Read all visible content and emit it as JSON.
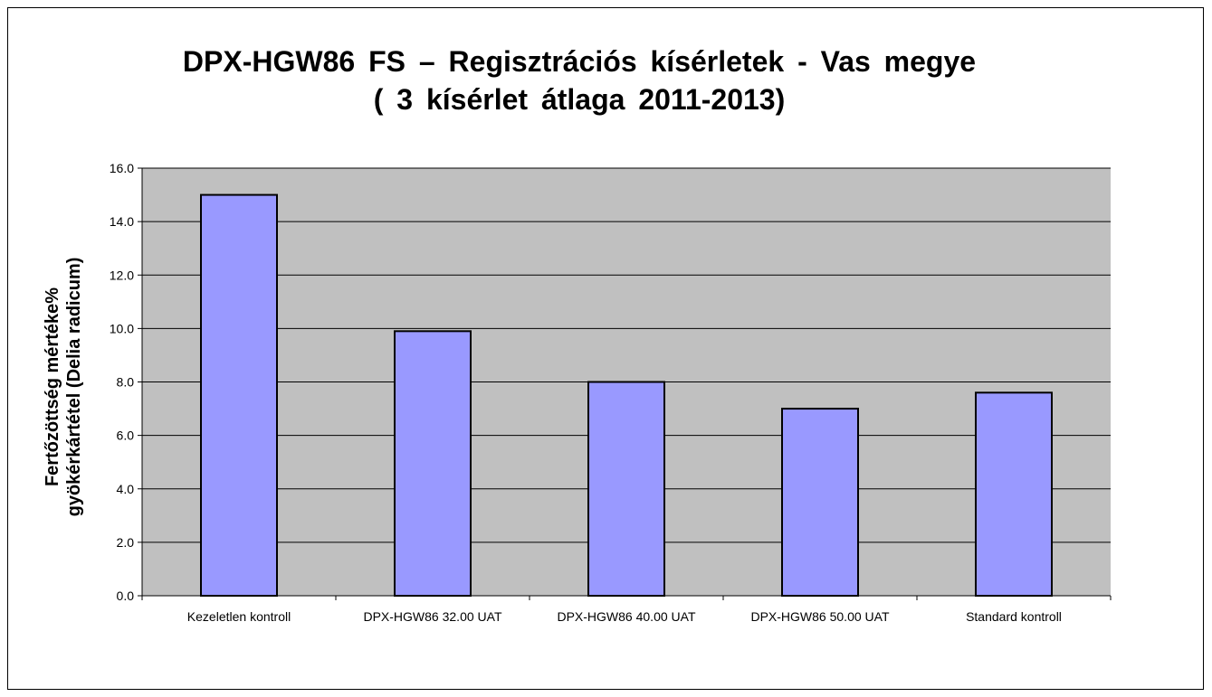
{
  "chart_data": {
    "type": "bar",
    "title_line1": "DPX-HGW86 FS – Regisztrációs kísérletek - Vas megye",
    "title_line2": "( 3 kísérlet átlaga  2011-2013)",
    "ylabel_line1": "Fertőzöttség mértéke%",
    "ylabel_line2": "gyökérkártétel (Delia radicum)",
    "xlabel": "",
    "categories": [
      "Kezeletlen kontroll",
      "DPX-HGW86 32.00 UAT",
      "DPX-HGW86 40.00 UAT",
      "DPX-HGW86 50.00 UAT",
      "Standard kontroll"
    ],
    "values": [
      15.0,
      9.9,
      8.0,
      7.0,
      7.6
    ],
    "ylim": [
      0,
      16
    ],
    "yticks": [
      "0.0",
      "2.0",
      "4.0",
      "6.0",
      "8.0",
      "10.0",
      "12.0",
      "14.0",
      "16.0"
    ],
    "grid": true,
    "legend": "none",
    "colors": {
      "bar": "#9999ff",
      "plot_bg": "#c0c0c0",
      "bar_border": "#000000"
    }
  }
}
